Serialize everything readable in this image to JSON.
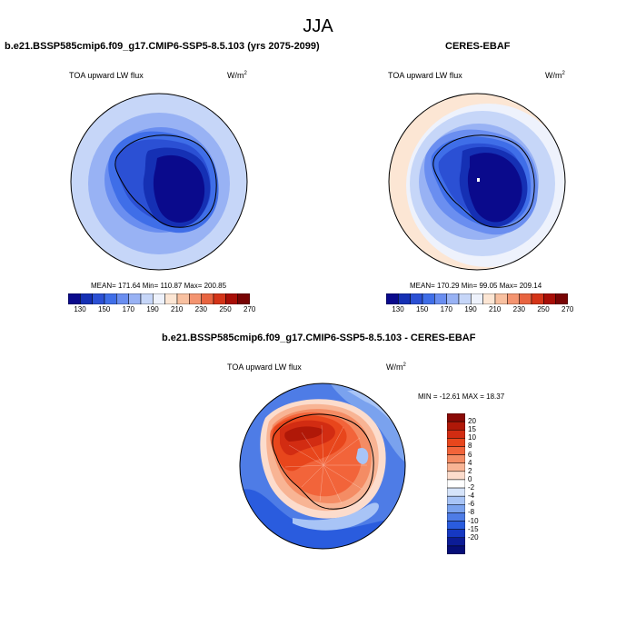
{
  "season": "JJA",
  "panels": [
    {
      "id": "model",
      "title": "b.e21.BSSP585cmip6.f09_g17.CMIP6-SSP5-8.5.103 (yrs 2075-2099)",
      "variable": "TOA upward LW flux",
      "units_base": "W/m",
      "units_exp": "2",
      "stats": "MEAN= 171.64  Min= 110.87  Max= 200.85"
    },
    {
      "id": "obs",
      "title": "CERES-EBAF",
      "variable": "TOA upward LW flux",
      "units_base": "W/m",
      "units_exp": "2",
      "stats": "MEAN= 170.29  Min=  99.05  Max= 209.14"
    },
    {
      "id": "diff",
      "title": "b.e21.BSSP585cmip6.f09_g17.CMIP6-SSP5-8.5.103 - CERES-EBAF",
      "variable": "TOA upward LW flux",
      "units_base": "W/m",
      "units_exp": "2",
      "stats": "MIN = -12.61 MAX =  18.37"
    }
  ],
  "abs_colorbar": {
    "colors": [
      "#0a0a8c",
      "#1530b4",
      "#2b50d4",
      "#3f6ee8",
      "#6a8ef0",
      "#98b2f4",
      "#c6d6f8",
      "#eef2fc",
      "#fce6d4",
      "#f8c0a0",
      "#f49470",
      "#e86440",
      "#d43418",
      "#a80e06",
      "#780404"
    ],
    "labels": [
      "130",
      "150",
      "170",
      "190",
      "210",
      "230",
      "250",
      "270"
    ]
  },
  "diff_colorbar": {
    "colors": [
      "#8a0a06",
      "#b01808",
      "#d22c12",
      "#e8461c",
      "#f2643a",
      "#f48c64",
      "#f8b494",
      "#fcdccc",
      "#ffffff",
      "#d6e4fa",
      "#a8c4f6",
      "#7aa2ee",
      "#4e7ce6",
      "#2a5cde",
      "#1638c2",
      "#0c1c96",
      "#060e78"
    ],
    "labels": [
      "20",
      "15",
      "10",
      "8",
      "6",
      "4",
      "2",
      "0",
      "-2",
      "-4",
      "-6",
      "-8",
      "-10",
      "-15",
      "-20"
    ]
  }
}
